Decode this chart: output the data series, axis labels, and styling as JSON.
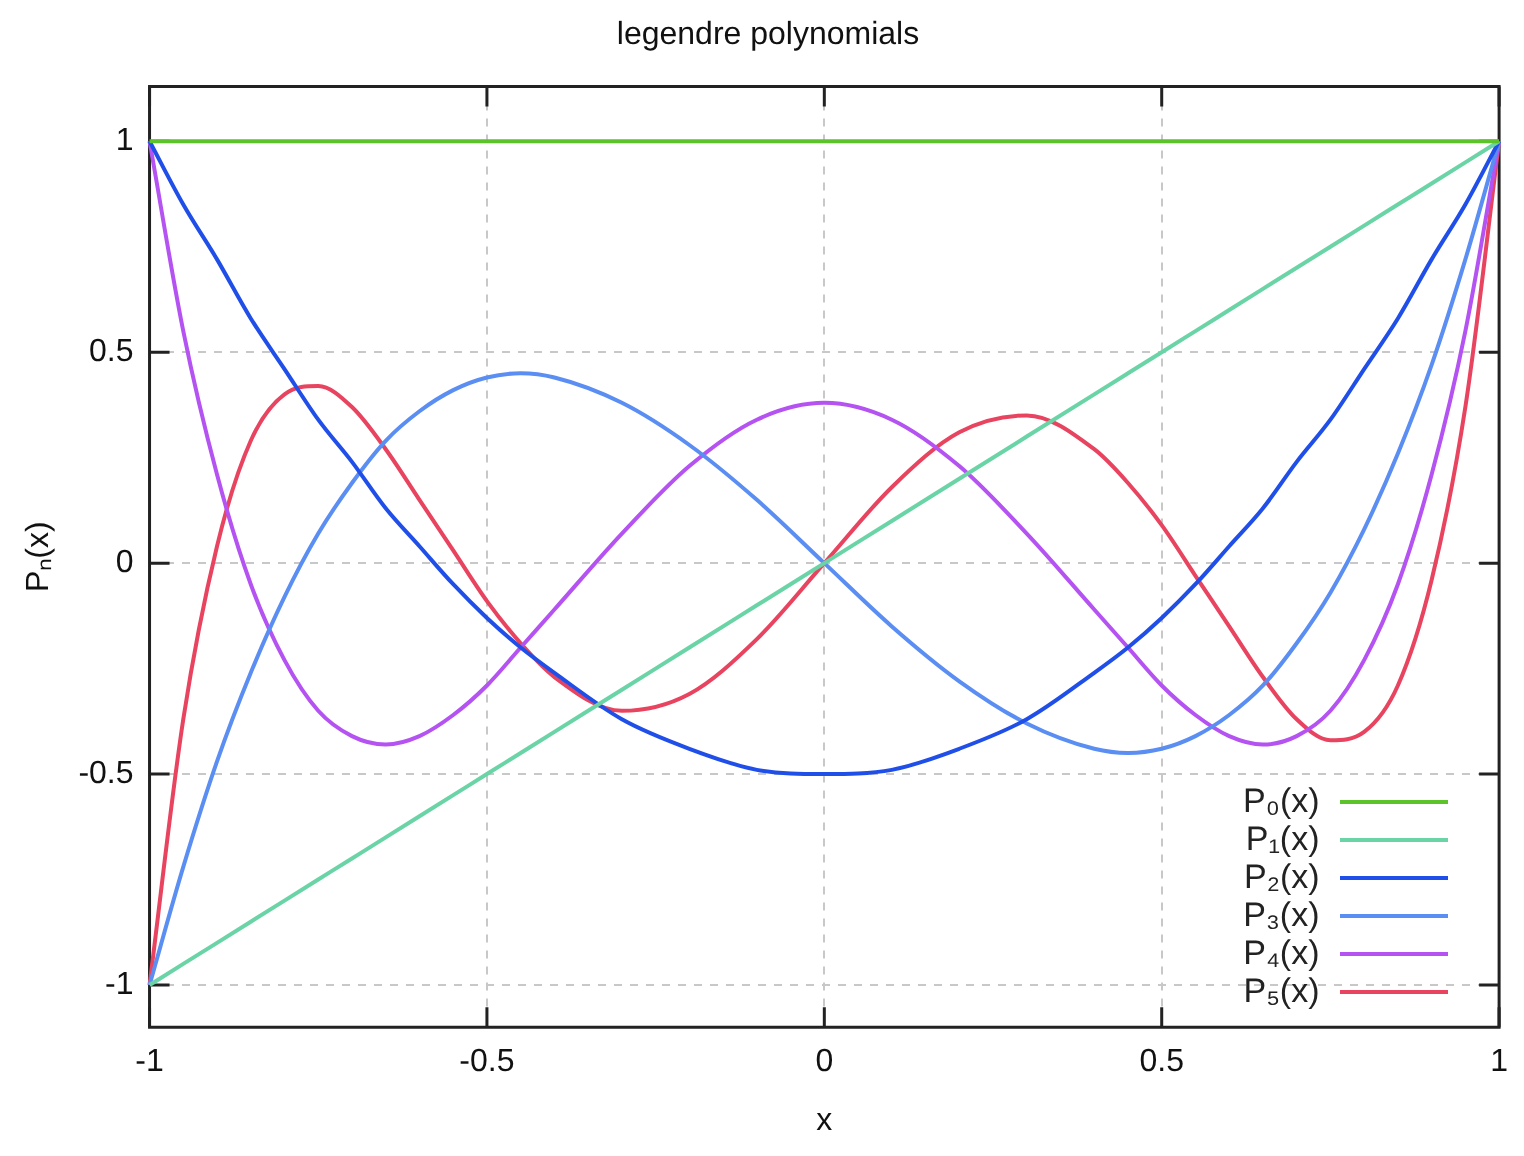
{
  "chart_data": {
    "type": "line",
    "title": "legendre polynomials",
    "xlabel": "x",
    "ylabel": "Pₙ(x)",
    "xlim": [
      -1,
      1
    ],
    "ylim": [
      -1.1,
      1.13
    ],
    "xticks": [
      -1,
      -0.5,
      0,
      0.5,
      1
    ],
    "yticks": [
      -1,
      -0.5,
      0,
      0.5,
      1
    ],
    "grid": true,
    "legend": "bottom right",
    "marker": "none",
    "line_style": "solid",
    "x": [
      -1,
      -0.95,
      -0.9,
      -0.85,
      -0.8,
      -0.75,
      -0.7,
      -0.65,
      -0.6,
      -0.55,
      -0.5,
      -0.45,
      -0.4,
      -0.3,
      -0.2,
      -0.1,
      0,
      0.1,
      0.2,
      0.3,
      0.4,
      0.45,
      0.5,
      0.55,
      0.6,
      0.65,
      0.7,
      0.75,
      0.8,
      0.85,
      0.9,
      0.95,
      1
    ],
    "series": [
      {
        "name": "P₀(x)",
        "color": "#5cc42a",
        "values": [
          1,
          1,
          1,
          1,
          1,
          1,
          1,
          1,
          1,
          1,
          1,
          1,
          1,
          1,
          1,
          1,
          1,
          1,
          1,
          1,
          1,
          1,
          1,
          1,
          1,
          1,
          1,
          1,
          1,
          1,
          1,
          1,
          1
        ]
      },
      {
        "name": "P₁(x)",
        "color": "#6ad4a6",
        "values": [
          -1,
          -0.95,
          -0.9,
          -0.85,
          -0.8,
          -0.75,
          -0.7,
          -0.65,
          -0.6,
          -0.55,
          -0.5,
          -0.45,
          -0.4,
          -0.3,
          -0.2,
          -0.1,
          0,
          0.1,
          0.2,
          0.3,
          0.4,
          0.45,
          0.5,
          0.55,
          0.6,
          0.65,
          0.7,
          0.75,
          0.8,
          0.85,
          0.9,
          0.95,
          1
        ]
      },
      {
        "name": "P₂(x)",
        "color": "#1f4fe8",
        "values": [
          1,
          0.85,
          0.72,
          0.58,
          0.46,
          0.34,
          0.24,
          0.13,
          0.04,
          -0.05,
          -0.13,
          -0.2,
          -0.26,
          -0.37,
          -0.44,
          -0.49,
          -0.5,
          -0.49,
          -0.44,
          -0.37,
          -0.26,
          -0.2,
          -0.13,
          -0.05,
          0.04,
          0.13,
          0.24,
          0.34,
          0.46,
          0.58,
          0.72,
          0.85,
          1
        ]
      },
      {
        "name": "P₃(x)",
        "color": "#5b8ef2",
        "values": [
          -1,
          -0.72,
          -0.47,
          -0.26,
          -0.08,
          0.07,
          0.19,
          0.29,
          0.36,
          0.41,
          0.44,
          0.45,
          0.44,
          0.38,
          0.28,
          0.15,
          0,
          -0.15,
          -0.28,
          -0.38,
          -0.44,
          -0.45,
          -0.44,
          -0.41,
          -0.36,
          -0.29,
          -0.19,
          -0.07,
          0.08,
          0.26,
          0.47,
          0.72,
          1
        ]
      },
      {
        "name": "P₄(x)",
        "color": "#b552f2",
        "values": [
          1,
          0.55,
          0.21,
          -0.05,
          -0.23,
          -0.35,
          -0.41,
          -0.43,
          -0.41,
          -0.36,
          -0.29,
          -0.2,
          -0.11,
          0.07,
          0.23,
          0.34,
          0.38,
          0.34,
          0.23,
          0.07,
          -0.11,
          -0.2,
          -0.29,
          -0.36,
          -0.41,
          -0.43,
          -0.41,
          -0.35,
          -0.23,
          -0.05,
          0.21,
          0.55,
          1
        ]
      },
      {
        "name": "P₅(x)",
        "color": "#e8435f",
        "values": [
          -1,
          -0.37,
          0.04,
          0.29,
          0.4,
          0.42,
          0.37,
          0.27,
          0.15,
          0.03,
          -0.09,
          -0.19,
          -0.27,
          -0.35,
          -0.31,
          -0.18,
          0,
          0.18,
          0.31,
          0.35,
          0.27,
          0.19,
          0.09,
          -0.03,
          -0.15,
          -0.27,
          -0.37,
          -0.42,
          -0.4,
          -0.29,
          -0.04,
          0.37,
          1
        ]
      }
    ]
  }
}
